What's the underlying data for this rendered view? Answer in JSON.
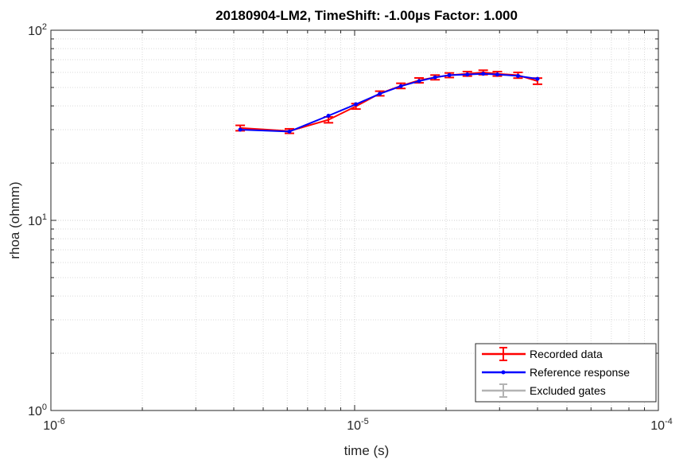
{
  "chart_data": {
    "type": "line",
    "title": "20180904-LM2,   TimeShift: -1.00µs   Factor: 1.000",
    "xlabel": "time (s)",
    "ylabel": "rhoa (ohmm)",
    "xscale": "log",
    "yscale": "log",
    "xlim": [
      1e-06,
      0.0001
    ],
    "ylim": [
      1,
      100
    ],
    "grid": true,
    "minor_grid": true,
    "legend_position": "bottom-right",
    "x_ticks": [
      {
        "value": 1e-06,
        "base": "10",
        "exp": "-6"
      },
      {
        "value": 1e-05,
        "base": "10",
        "exp": "-5"
      },
      {
        "value": 0.0001,
        "base": "10",
        "exp": "-4"
      }
    ],
    "y_ticks": [
      {
        "value": 1,
        "base": "10",
        "exp": "0"
      },
      {
        "value": 10,
        "base": "10",
        "exp": "1"
      },
      {
        "value": 100,
        "base": "10",
        "exp": "2"
      }
    ],
    "series": [
      {
        "name": "Recorded data",
        "color": "#ff0000",
        "style": "errorbar",
        "x": [
          4.2e-06,
          6.1e-06,
          8.2e-06,
          1.01e-05,
          1.21e-05,
          1.42e-05,
          1.63e-05,
          1.84e-05,
          2.05e-05,
          2.35e-05,
          2.65e-05,
          2.95e-05,
          3.45e-05,
          4e-05
        ],
        "y": [
          30.6,
          29.5,
          33.8,
          39.8,
          46.5,
          51.0,
          54.5,
          56.5,
          58.0,
          59.0,
          60.0,
          59.0,
          58.0,
          54.0
        ],
        "err": [
          1.0,
          0.8,
          1.2,
          1.3,
          1.3,
          1.6,
          1.6,
          1.6,
          1.6,
          1.6,
          1.6,
          1.6,
          2.0,
          2.0
        ]
      },
      {
        "name": "Reference response",
        "color": "#0000ff",
        "style": "line-marker",
        "x": [
          4.2e-06,
          6.1e-06,
          8.2e-06,
          1.01e-05,
          1.21e-05,
          1.42e-05,
          1.63e-05,
          1.84e-05,
          2.05e-05,
          2.35e-05,
          2.65e-05,
          2.95e-05,
          3.45e-05,
          4e-05
        ],
        "y": [
          30.0,
          29.3,
          35.5,
          40.8,
          46.3,
          50.8,
          54.0,
          56.5,
          58.0,
          58.5,
          59.0,
          58.5,
          57.5,
          55.5
        ]
      },
      {
        "name": "Excluded gates",
        "color": "#b3b3b3",
        "style": "errorbar",
        "x": [],
        "y": []
      }
    ]
  }
}
